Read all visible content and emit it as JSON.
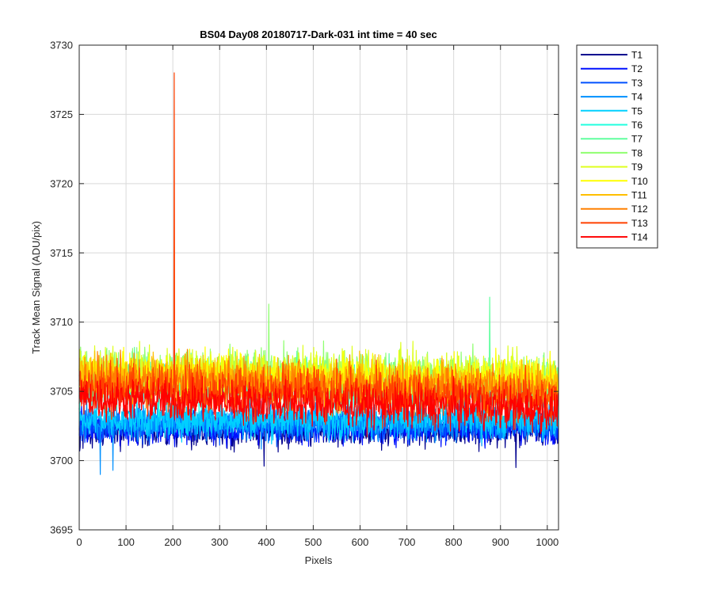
{
  "chart_data": {
    "type": "line",
    "title": "BS04 Day08 20180717-Dark-031 int time = 40 sec",
    "xlabel": "Pixels",
    "ylabel": "Track Mean Signal (ADU/pix)",
    "xlim": [
      0,
      1024
    ],
    "ylim": [
      3695,
      3730
    ],
    "xticks": [
      0,
      100,
      200,
      300,
      400,
      500,
      600,
      700,
      800,
      900,
      1000
    ],
    "yticks": [
      3695,
      3700,
      3705,
      3710,
      3715,
      3720,
      3725,
      3730
    ],
    "grid": true,
    "legend_position": "outside-top-right",
    "series": [
      {
        "name": "T1",
        "color": "#00008f",
        "mean": 3702.2,
        "noise": 1.0,
        "trend": 0.0,
        "spikes": [
          {
            "x": 395,
            "y": 3699.6
          },
          {
            "x": 933,
            "y": 3699.5
          }
        ]
      },
      {
        "name": "T2",
        "color": "#0010ff",
        "mean": 3702.4,
        "noise": 1.0,
        "trend": 0.0,
        "spikes": []
      },
      {
        "name": "T3",
        "color": "#0050ff",
        "mean": 3702.6,
        "noise": 1.0,
        "trend": 0.0,
        "spikes": []
      },
      {
        "name": "T4",
        "color": "#0090ff",
        "mean": 3702.8,
        "noise": 1.1,
        "trend": 0.0,
        "spikes": [
          {
            "x": 45,
            "y": 3699.0
          },
          {
            "x": 72,
            "y": 3699.3
          }
        ]
      },
      {
        "name": "T5",
        "color": "#00d0ff",
        "mean": 3703.0,
        "noise": 1.1,
        "trend": 0.0,
        "spikes": []
      },
      {
        "name": "T6",
        "color": "#20ffdf",
        "mean": 3705.4,
        "noise": 1.4,
        "trend": -0.4,
        "spikes": []
      },
      {
        "name": "T7",
        "color": "#60ff9f",
        "mean": 3706.0,
        "noise": 1.4,
        "trend": -0.4,
        "spikes": [
          {
            "x": 877,
            "y": 3711.8
          }
        ]
      },
      {
        "name": "T8",
        "color": "#8fff70",
        "mean": 3706.5,
        "noise": 1.4,
        "trend": -0.4,
        "spikes": [
          {
            "x": 405,
            "y": 3711.3
          }
        ]
      },
      {
        "name": "T9",
        "color": "#dfff20",
        "mean": 3706.5,
        "noise": 1.4,
        "trend": -0.5,
        "spikes": []
      },
      {
        "name": "T10",
        "color": "#ffff00",
        "mean": 3706.3,
        "noise": 1.4,
        "trend": -0.5,
        "spikes": []
      },
      {
        "name": "T11",
        "color": "#ffbf00",
        "mean": 3706.0,
        "noise": 1.4,
        "trend": -0.6,
        "spikes": []
      },
      {
        "name": "T12",
        "color": "#ff8000",
        "mean": 3705.8,
        "noise": 1.5,
        "trend": -0.7,
        "spikes": []
      },
      {
        "name": "T13",
        "color": "#ff4000",
        "mean": 3705.3,
        "noise": 1.5,
        "trend": -0.9,
        "spikes": [
          {
            "x": 203,
            "y": 3728.0
          }
        ]
      },
      {
        "name": "T14",
        "color": "#ff0000",
        "mean": 3704.5,
        "noise": 1.3,
        "trend": -0.8,
        "spikes": []
      }
    ]
  }
}
